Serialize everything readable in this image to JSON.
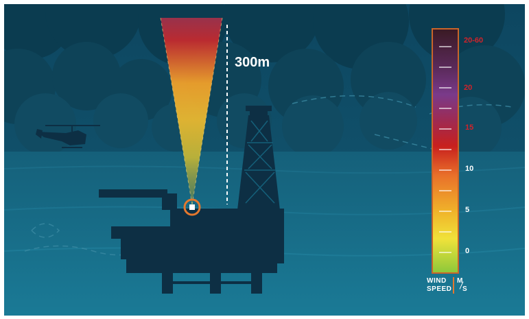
{
  "height_label": "300m",
  "colors": {
    "sky": "#0f4a62",
    "cloud_dark": "#0b3c50",
    "cloud_mid": "#12506a",
    "sea_top": "#15607a",
    "sea_bottom": "#1a7591",
    "silhouette": "#0d2f44",
    "sensor_ring": "#e4782e"
  },
  "legend": {
    "scale_labels": [
      "20-60",
      "20",
      "15",
      "10",
      "5",
      "0"
    ],
    "unit_title_line1": "WIND",
    "unit_title_line2": "SPEED",
    "unit_m": "M",
    "unit_s": "S"
  },
  "icons": [
    "helicopter-icon",
    "oil-rig-icon",
    "lidar-sensor-icon"
  ]
}
